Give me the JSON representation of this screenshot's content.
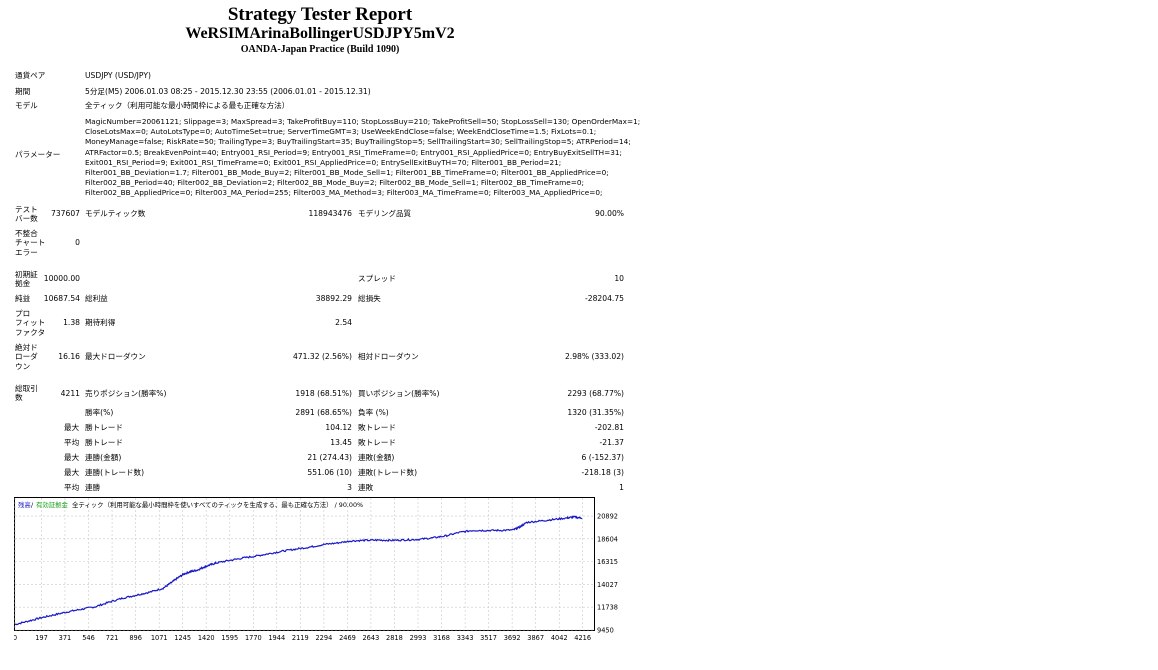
{
  "header": {
    "title": "Strategy Tester Report",
    "ea_name": "WeRSIMArinaBollingerUSDJPY5mV2",
    "server": "OANDA-Japan Practice (Build 1090)"
  },
  "info": {
    "symbol_label": "通貨ペア",
    "symbol_value": "USDJPY (USD/JPY)",
    "period_label": "期間",
    "period_value": "5分足(M5) 2006.01.03 08:25 - 2015.12.30 23:55 (2006.01.01 - 2015.12.31)",
    "model_label": "モデル",
    "model_value": "全ティック（利用可能な最小時間枠による最も正確な方法）",
    "params_label": "パラメーター",
    "params_lines": [
      "MagicNumber=20061121; Slippage=3; MaxSpread=3; TakeProfitBuy=110; StopLossBuy=210; TakeProfitSell=50; StopLossSell=130; OpenOrderMax=1;",
      "CloseLotsMax=0; AutoLotsType=0; AutoTimeSet=true; ServerTimeGMT=3; UseWeekEndClose=false; WeekEndCloseTime=1.5; FixLots=0.1;",
      "MoneyManage=false; RiskRate=50; TrailingType=3; BuyTrailingStart=35; BuyTrailingStop=5; SellTrailingStart=30; SellTrailingStop=5; ATRPeriod=14;",
      "ATRFactor=0.5; BreakEvenPoint=40; Entry001_RSI_Period=9; Entry001_RSI_TimeFrame=0; Entry001_RSI_AppliedPrice=0; EntryBuyExitSellTH=31;",
      "Exit001_RSI_Period=9; Exit001_RSI_TimeFrame=0; Exit001_RSI_AppliedPrice=0; EntrySellExitBuyTH=70; Filter001_BB_Period=21;",
      "Filter001_BB_Deviation=1.7; Filter001_BB_Mode_Buy=2; Filter001_BB_Mode_Sell=1; Filter001_BB_TimeFrame=0; Filter001_BB_AppliedPrice=0;",
      "Filter002_BB_Period=40; Filter002_BB_Deviation=2; Filter002_BB_Mode_Buy=2; Filter002_BB_Mode_Sell=1; Filter002_BB_TimeFrame=0;",
      "Filter002_BB_AppliedPrice=0; Filter003_MA_Period=255; Filter003_MA_Method=3; Filter003_MA_TimeFrame=0; Filter003_MA_AppliedPrice=0;"
    ]
  },
  "stats": {
    "bars_label": "テスト\nバー数",
    "bars_value": "737607",
    "ticks_label": "モデルティック数",
    "ticks_value": "118943476",
    "quality_label": "モデリング品質",
    "quality_value": "90.00%",
    "mismatch_label": "不整合\nチャート\nエラー",
    "mismatch_value": "0",
    "deposit_label": "初期証\n拠金",
    "deposit_value": "10000.00",
    "spread_label": "スプレッド",
    "spread_value": "10",
    "net_label": "純益",
    "net_value": "10687.54",
    "gross_profit_label": "総利益",
    "gross_profit_value": "38892.29",
    "gross_loss_label": "総損失",
    "gross_loss_value": "-28204.75",
    "pf_label": "プロ\nフィット\nファクタ",
    "pf_value": "1.38",
    "expected_label": "期待利得",
    "expected_value": "2.54",
    "abs_dd_label": "絶対ド\nローダ\nウン",
    "abs_dd_value": "16.16",
    "max_dd_label": "最大ドローダウン",
    "max_dd_value": "471.32 (2.56%)",
    "rel_dd_label": "相対ドローダウン",
    "rel_dd_value": "2.98% (333.02)",
    "total_trades_label": "総取引\n数",
    "total_trades_value": "4211",
    "short_label": "売りポジション(勝率%)",
    "short_value": "1918 (68.51%)",
    "long_label": "買いポジション(勝率%)",
    "long_value": "2293 (68.77%)",
    "win_label": "勝率(%)",
    "win_value": "2891 (68.65%)",
    "loss_label": "負率 (%)",
    "loss_value": "1320 (31.35%)",
    "rows": [
      {
        "pre": "最大",
        "a_label": "勝トレード",
        "a_value": "104.12",
        "b_label": "敗トレード",
        "b_value": "-202.81"
      },
      {
        "pre": "平均",
        "a_label": "勝トレード",
        "a_value": "13.45",
        "b_label": "敗トレード",
        "b_value": "-21.37"
      },
      {
        "pre": "最大",
        "a_label": "連勝(金額)",
        "a_value": "21 (274.43)",
        "b_label": "連敗(金額)",
        "b_value": "6 (-152.37)"
      },
      {
        "pre": "最大",
        "a_label": "連勝(トレード数)",
        "a_value": "551.06 (10)",
        "b_label": "連敗(トレード数)",
        "b_value": "-218.18 (3)"
      },
      {
        "pre": "平均",
        "a_label": "連勝",
        "a_value": "3",
        "b_label": "連敗",
        "b_value": "1"
      }
    ]
  },
  "chart_data": {
    "type": "line",
    "legend_balance": "残高",
    "legend_equity": "有効証拠金",
    "legend_rest": "全ティック（利用可能な最小時間枠を使いすべてのティックを生成する、最も正確な方法） / 90.00%",
    "colors": {
      "balance": "#1818c8",
      "equity": "#16a016",
      "grid": "#c8c8c8"
    },
    "ylim": [
      9450,
      21400
    ],
    "y_ticks": [
      9450,
      11738,
      14027,
      16315,
      18604,
      20892
    ],
    "x_ticks": [
      0,
      197,
      371,
      546,
      721,
      896,
      1071,
      1245,
      1420,
      1595,
      1770,
      1944,
      2119,
      2294,
      2469,
      2643,
      2818,
      2993,
      3168,
      3343,
      3517,
      3692,
      3867,
      4042,
      4216
    ],
    "xlim": [
      0,
      4300
    ],
    "x": [
      0,
      100,
      200,
      300,
      400,
      500,
      600,
      700,
      800,
      900,
      1000,
      1100,
      1150,
      1200,
      1250,
      1300,
      1350,
      1400,
      1450,
      1500,
      1600,
      1700,
      1800,
      1900,
      2000,
      2100,
      2200,
      2300,
      2400,
      2500,
      2600,
      2700,
      2800,
      2900,
      3000,
      3100,
      3200,
      3300,
      3400,
      3500,
      3600,
      3700,
      3750,
      3800,
      3900,
      4000,
      4100,
      4150,
      4211
    ],
    "y": [
      10000,
      10350,
      10700,
      11000,
      11300,
      11550,
      11800,
      12250,
      12650,
      12950,
      13250,
      13650,
      14100,
      14600,
      15050,
      15300,
      15450,
      15750,
      16000,
      16200,
      16450,
      16700,
      16900,
      17150,
      17400,
      17600,
      17800,
      18050,
      18200,
      18400,
      18450,
      18480,
      18450,
      18500,
      18550,
      18700,
      18900,
      19250,
      19450,
      19450,
      19450,
      19500,
      19800,
      20250,
      20400,
      20550,
      20700,
      20800,
      20687
    ]
  }
}
